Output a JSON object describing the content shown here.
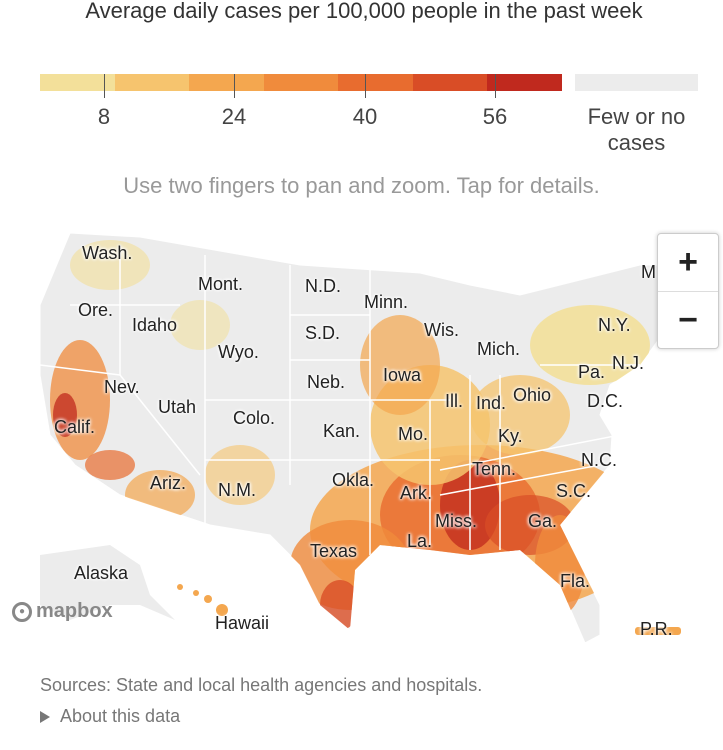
{
  "title": "Average daily cases per 100,000 people in the past week",
  "legend": {
    "colors": [
      "#f3e09a",
      "#f6c46e",
      "#f4a74f",
      "#f08b3c",
      "#e86c2f",
      "#d94d26",
      "#c0291e"
    ],
    "ticks": [
      "8",
      "24",
      "40",
      "56"
    ],
    "few_label": "Few or no cases",
    "few_color": "#ececec"
  },
  "hint": "Use two fingers to pan and zoom. Tap for details.",
  "map": {
    "land_color": "#ececec",
    "state_labels": [
      "Wash.",
      "Mont.",
      "N.D.",
      "Minn.",
      "Ore.",
      "Idaho",
      "S.D.",
      "Wis.",
      "Wyo.",
      "Mich.",
      "N.Y.",
      "Nev.",
      "Neb.",
      "Iowa",
      "Pa.",
      "N.J.",
      "Utah",
      "Ohio",
      "D.C.",
      "Ill.",
      "Ind.",
      "Calif.",
      "Colo.",
      "Kan.",
      "Mo.",
      "Ky.",
      "Tenn.",
      "N.C.",
      "Ariz.",
      "N.M.",
      "Okla.",
      "Ark.",
      "S.C.",
      "Miss.",
      "Ga.",
      "La.",
      "Texas",
      "Alaska",
      "Fla.",
      "Hawaii",
      "P.R.",
      "M"
    ]
  },
  "zoom": {
    "in_label": "+",
    "out_label": "−"
  },
  "mapbox_label": "mapbox",
  "sources": "Sources: State and local health agencies and hospitals.",
  "about": "About this data"
}
